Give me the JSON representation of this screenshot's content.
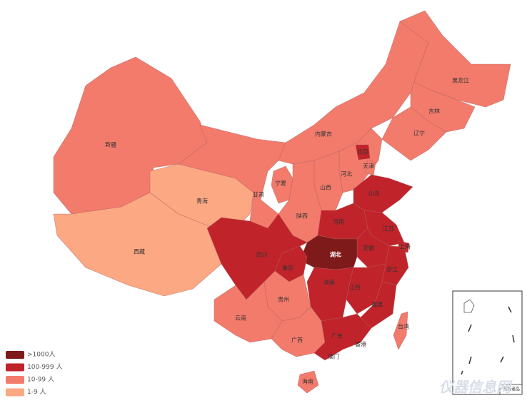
{
  "legend": [
    {
      "label": ">1000人",
      "color": "#7e1a1a"
    },
    {
      "label": "100-999 人",
      "color": "#c0232a"
    },
    {
      "label": "10-99 人",
      "color": "#f37b6c"
    },
    {
      "label": "1-9 人",
      "color": "#fca883"
    }
  ],
  "provinces": [
    {
      "name": "新疆",
      "level": 2
    },
    {
      "name": "西藏",
      "level": 3
    },
    {
      "name": "青海",
      "level": 3
    },
    {
      "name": "甘肃",
      "level": 2
    },
    {
      "name": "内蒙古",
      "level": 2
    },
    {
      "name": "黑龙江",
      "level": 2
    },
    {
      "name": "吉林",
      "level": 2
    },
    {
      "name": "辽宁",
      "level": 2
    },
    {
      "name": "河北",
      "level": 2
    },
    {
      "name": "北京",
      "level": 1
    },
    {
      "name": "天津",
      "level": 2
    },
    {
      "name": "山西",
      "level": 2
    },
    {
      "name": "宁夏",
      "level": 2
    },
    {
      "name": "陕西",
      "level": 2
    },
    {
      "name": "山东",
      "level": 1
    },
    {
      "name": "河南",
      "level": 1
    },
    {
      "name": "江苏",
      "level": 1
    },
    {
      "name": "安徽",
      "level": 1
    },
    {
      "name": "上海",
      "level": 1
    },
    {
      "name": "湖北",
      "level": 0
    },
    {
      "name": "浙江",
      "level": 1
    },
    {
      "name": "江西",
      "level": 1
    },
    {
      "name": "福建",
      "level": 1
    },
    {
      "name": "湖南",
      "level": 1
    },
    {
      "name": "重庆",
      "level": 1
    },
    {
      "name": "四川",
      "level": 1
    },
    {
      "name": "贵州",
      "level": 2
    },
    {
      "name": "云南",
      "level": 2
    },
    {
      "name": "广西",
      "level": 2
    },
    {
      "name": "广东",
      "level": 1
    },
    {
      "name": "海南",
      "level": 2
    },
    {
      "name": "台湾",
      "level": 2
    },
    {
      "name": "香港",
      "level": 2
    },
    {
      "name": "澳门",
      "level": 2
    }
  ],
  "inset_label": "南海诸岛",
  "watermark": "仪器信息网"
}
